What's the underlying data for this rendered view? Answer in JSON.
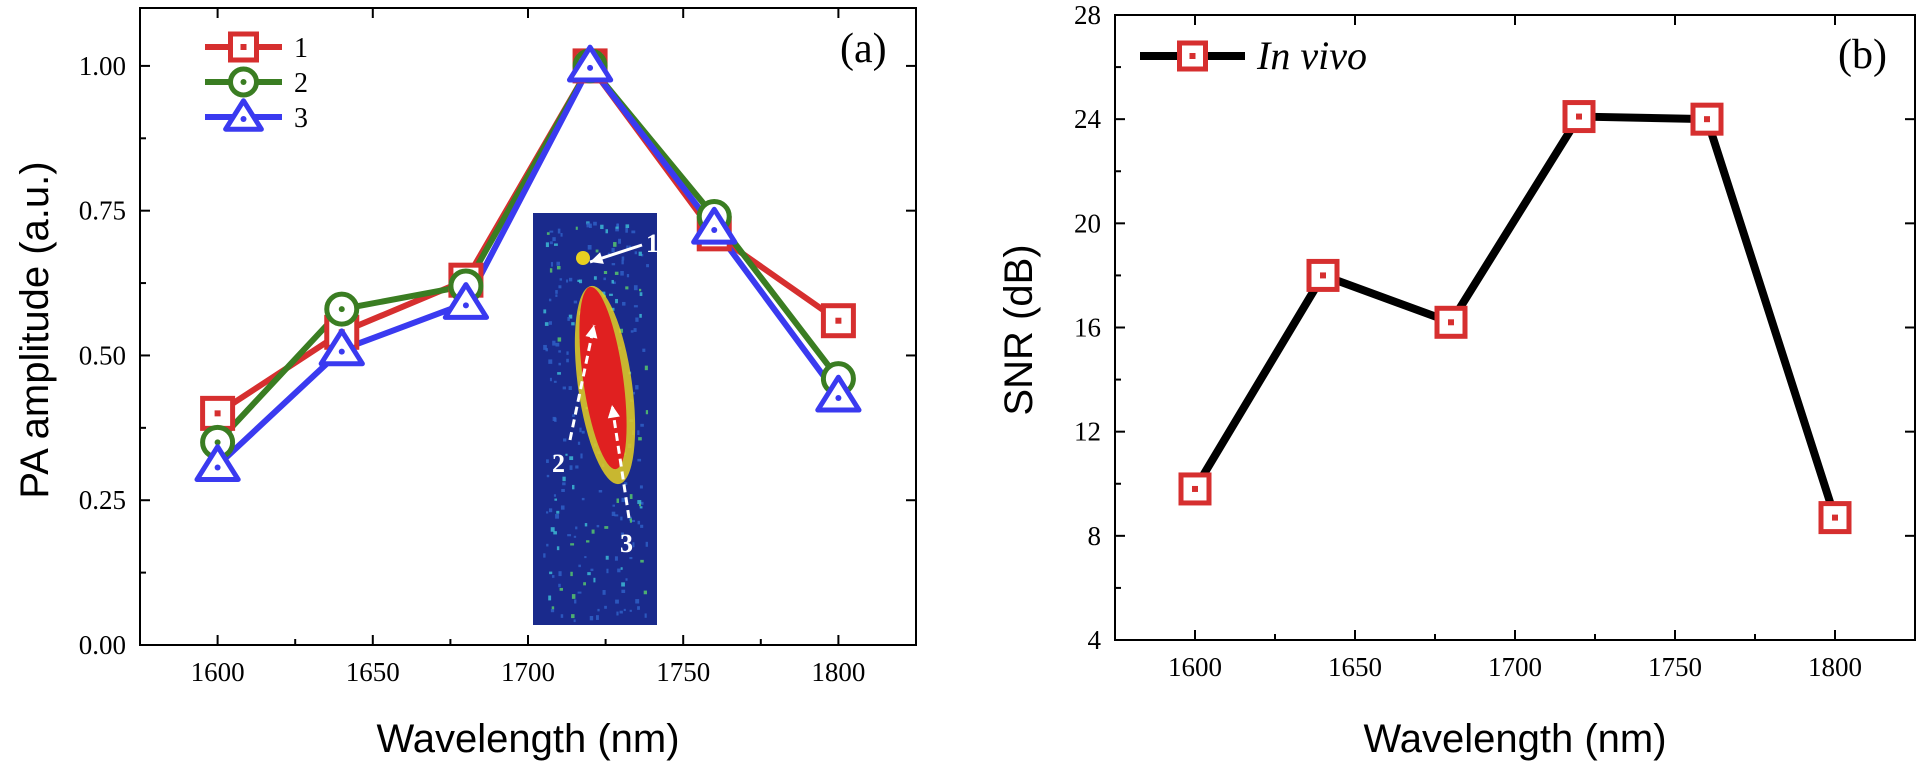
{
  "chart_data": [
    {
      "type": "line",
      "panel_label": "(a)",
      "xlabel": "Wavelength (nm)",
      "ylabel": "PA amplitude (a.u.)",
      "xlim": [
        1575,
        1825
      ],
      "ylim": [
        0.0,
        1.1
      ],
      "x_ticks": [
        1600,
        1650,
        1700,
        1750,
        1800
      ],
      "x_tick_labels": [
        "1600",
        "1650",
        "1700",
        "1750",
        "1800"
      ],
      "y_ticks": [
        0.0,
        0.25,
        0.5,
        0.75,
        1.0
      ],
      "y_tick_labels": [
        "0.00",
        "0.25",
        "0.50",
        "0.75",
        "1.00"
      ],
      "legend_position": "top-left",
      "x": [
        1600,
        1640,
        1680,
        1720,
        1760,
        1800
      ],
      "series": [
        {
          "name": "1",
          "marker": "square",
          "color": "#d62f2f",
          "values": [
            0.4,
            0.54,
            0.63,
            1.0,
            0.71,
            0.56
          ]
        },
        {
          "name": "2",
          "marker": "circle",
          "color": "#3a7d22",
          "values": [
            0.35,
            0.58,
            0.62,
            1.0,
            0.74,
            0.46
          ]
        },
        {
          "name": "3",
          "marker": "triangle",
          "color": "#3a3af0",
          "values": [
            0.31,
            0.51,
            0.59,
            1.0,
            0.72,
            0.43
          ]
        }
      ],
      "inset": {
        "description_colors": {
          "background": "#1a2a8c",
          "hot": "#e02020",
          "warm": "#e8d020"
        },
        "labels": [
          "1",
          "2",
          "3"
        ]
      }
    },
    {
      "type": "line",
      "panel_label": "(b)",
      "xlabel": "Wavelength (nm)",
      "ylabel": "SNR (dB)",
      "xlim": [
        1575,
        1825
      ],
      "ylim": [
        4,
        28
      ],
      "x_ticks": [
        1600,
        1650,
        1700,
        1750,
        1800
      ],
      "x_tick_labels": [
        "1600",
        "1650",
        "1700",
        "1750",
        "1800"
      ],
      "y_ticks": [
        4,
        8,
        12,
        16,
        20,
        24,
        28
      ],
      "y_tick_labels": [
        "4",
        "8",
        "12",
        "16",
        "20",
        "24",
        "28"
      ],
      "legend_position": "top-left",
      "x": [
        1600,
        1640,
        1680,
        1720,
        1760,
        1800
      ],
      "series": [
        {
          "name": "In vivo",
          "marker": "square",
          "color": "#d62f2f",
          "line_color": "#000000",
          "values": [
            9.8,
            18.0,
            16.2,
            24.1,
            24.0,
            8.7
          ]
        }
      ]
    }
  ]
}
